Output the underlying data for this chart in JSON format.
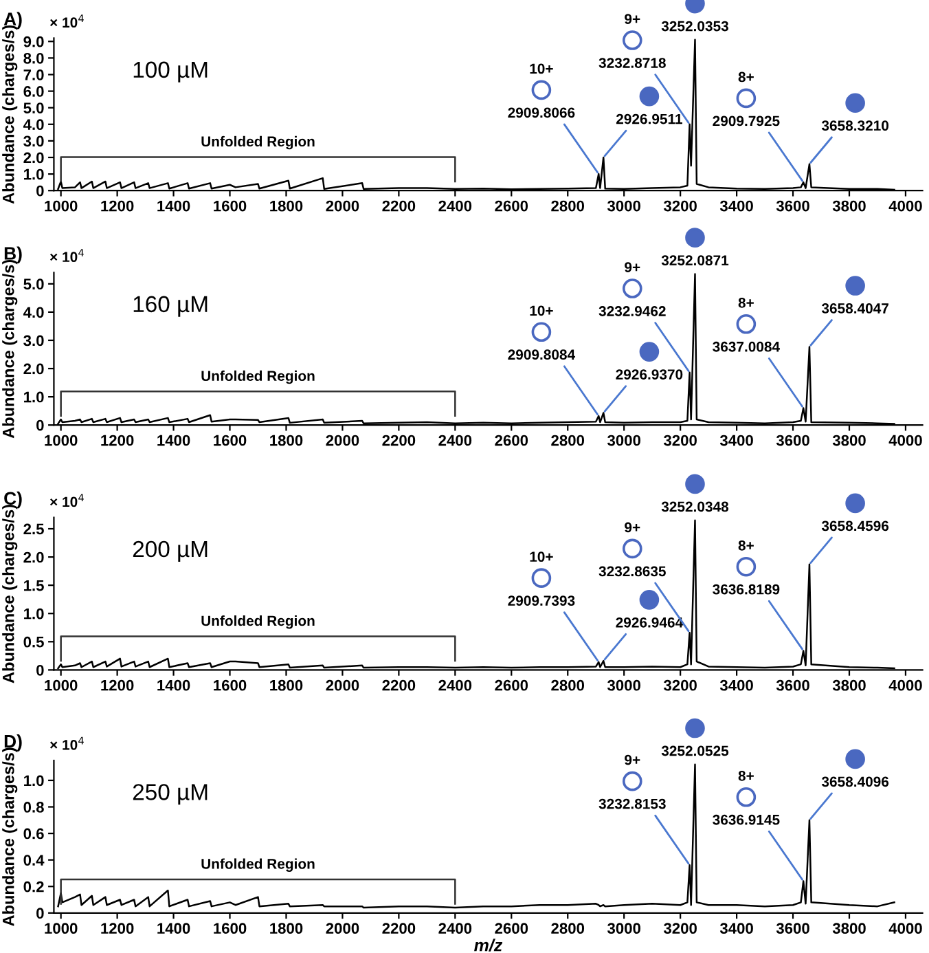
{
  "chart_data": [
    {
      "type": "line",
      "title": "A)",
      "ylabel": "Abundance (charges/s)",
      "x": [
        990,
        1000,
        1005,
        1050,
        1068,
        1073,
        1110,
        1115,
        1158,
        1163,
        1210,
        1215,
        1260,
        1265,
        1310,
        1315,
        1380,
        1385,
        1450,
        1455,
        1530,
        1535,
        1600,
        1620,
        1700,
        1705,
        1808,
        1813,
        1930,
        1935,
        2070,
        2075,
        2200,
        2300,
        2400,
        2500,
        2600,
        2700,
        2800,
        2900,
        2909.8,
        2915,
        2926.9,
        2933,
        3000,
        3100,
        3200,
        3225,
        3232.9,
        3238,
        3252.1,
        3258,
        3300,
        3400,
        3500,
        3600,
        3628,
        3637,
        3645,
        3658.4,
        3665,
        3800,
        3900,
        3960
      ],
      "series": [
        {
          "color": "#000000",
          "values": [
            0.1,
            0.55,
            0.15,
            0.2,
            0.5,
            0.15,
            0.55,
            0.15,
            0.55,
            0.15,
            0.5,
            0.15,
            0.5,
            0.15,
            0.45,
            0.15,
            0.45,
            0.12,
            0.45,
            0.12,
            0.45,
            0.12,
            0.35,
            0.2,
            0.4,
            0.12,
            0.6,
            0.12,
            0.75,
            0.1,
            0.45,
            0.1,
            0.15,
            0.15,
            0.1,
            0.12,
            0.08,
            0.1,
            0.12,
            0.15,
            1.0,
            0.15,
            2.0,
            0.12,
            0.1,
            0.15,
            0.2,
            0.3,
            4.0,
            1.5,
            9.1,
            0.4,
            0.2,
            0.12,
            0.1,
            0.15,
            0.2,
            0.5,
            0.15,
            1.6,
            0.2,
            0.1,
            0.1,
            0.05
          ]
        }
      ],
      "xlim": [
        975,
        4060
      ],
      "xticks": [
        1000,
        1200,
        1400,
        1600,
        1800,
        2000,
        2200,
        2400,
        2600,
        2800,
        3000,
        3200,
        3400,
        3600,
        3800,
        4000
      ],
      "ylim": [
        0,
        9.2
      ],
      "yticks": [
        0,
        {
          "value": 1.0,
          "label": "1.0"
        },
        {
          "value": 2.0,
          "label": "2.0"
        },
        {
          "value": 3.0,
          "label": "3.0"
        },
        {
          "value": 4.0,
          "label": "4.0"
        },
        {
          "value": 5.0,
          "label": "5.0"
        },
        {
          "value": 6.0,
          "label": "6.0"
        },
        {
          "value": 7.0,
          "label": "7.0"
        },
        {
          "value": 8.0,
          "label": "8.0"
        },
        {
          "value": 9.0,
          "label": "9.0"
        }
      ],
      "annotations": [
        "× 10$^{4}$",
        "100 µM",
        "Unfolded Region",
        "10+",
        {
          "text": "2909.8066",
          "x": 2909.8,
          "y": 1.0
        },
        {
          "text": "2926.9511",
          "x": 2926.9,
          "y": 2.0
        },
        "9+",
        {
          "text": "3232.8718",
          "x": 3232.9,
          "y": 4.0
        },
        {
          "text": "3252.0353",
          "x": 3252.1,
          "y": 9.1
        },
        "8+",
        {
          "text": "2909.7925",
          "x": 3637,
          "y": 0.5
        },
        {
          "text": "3658.3210",
          "x": 3658.4,
          "y": 1.6
        }
      ]
    },
    {
      "type": "line",
      "title": "B)",
      "ylabel": "Abundance (charges/s)",
      "x": [
        990,
        1000,
        1005,
        1050,
        1068,
        1073,
        1110,
        1115,
        1158,
        1163,
        1210,
        1215,
        1260,
        1265,
        1310,
        1315,
        1380,
        1385,
        1450,
        1455,
        1530,
        1535,
        1600,
        1620,
        1700,
        1705,
        1808,
        1813,
        1930,
        1935,
        2070,
        2075,
        2200,
        2300,
        2400,
        2500,
        2600,
        2700,
        2800,
        2900,
        2909.8,
        2915,
        2926.9,
        2933,
        3000,
        3100,
        3200,
        3225,
        3232.9,
        3238,
        3252.1,
        3258,
        3300,
        3400,
        3500,
        3600,
        3628,
        3637,
        3645,
        3658.4,
        3665,
        3800,
        3900,
        3960
      ],
      "series": [
        {
          "color": "#000000",
          "values": [
            0.05,
            0.2,
            0.1,
            0.15,
            0.2,
            0.1,
            0.22,
            0.1,
            0.22,
            0.1,
            0.25,
            0.1,
            0.2,
            0.1,
            0.2,
            0.1,
            0.25,
            0.1,
            0.22,
            0.1,
            0.35,
            0.12,
            0.2,
            0.2,
            0.18,
            0.1,
            0.25,
            0.08,
            0.2,
            0.08,
            0.15,
            0.06,
            0.08,
            0.1,
            0.06,
            0.08,
            0.06,
            0.08,
            0.1,
            0.12,
            0.32,
            0.1,
            0.43,
            0.1,
            0.08,
            0.1,
            0.1,
            0.15,
            1.86,
            0.2,
            5.35,
            0.2,
            0.1,
            0.08,
            0.06,
            0.1,
            0.15,
            0.6,
            0.12,
            2.77,
            0.1,
            0.08,
            0.06,
            0.04
          ]
        }
      ],
      "xlim": [
        975,
        4060
      ],
      "xticks": [
        1000,
        1200,
        1400,
        1600,
        1800,
        2000,
        2200,
        2400,
        2600,
        2800,
        3000,
        3200,
        3400,
        3600,
        3800,
        4000
      ],
      "ylim": [
        0,
        5.4
      ],
      "yticks": [
        0,
        {
          "value": 1.0,
          "label": "1.0"
        },
        {
          "value": 2.0,
          "label": "2.0"
        },
        {
          "value": 3.0,
          "label": "3.0"
        },
        {
          "value": 4.0,
          "label": "4.0"
        },
        {
          "value": 5.0,
          "label": "5.0"
        }
      ],
      "annotations": [
        "× 10$^{4}$",
        "160 µM",
        "Unfolded Region",
        "10+",
        {
          "text": "2909.8084",
          "x": 2909.8,
          "y": 0.32
        },
        {
          "text": "2926.9370",
          "x": 2926.9,
          "y": 0.43
        },
        "9+",
        {
          "text": "3232.9462",
          "x": 3232.9,
          "y": 1.86
        },
        {
          "text": "3252.0871",
          "x": 3252.1,
          "y": 5.35
        },
        "8+",
        {
          "text": "3637.0084",
          "x": 3637,
          "y": 0.6
        },
        {
          "text": "3658.4047",
          "x": 3658.4,
          "y": 2.77
        }
      ]
    },
    {
      "type": "line",
      "title": "C)",
      "ylabel": "Abundance (charges/s)",
      "x": [
        990,
        1000,
        1005,
        1050,
        1068,
        1073,
        1110,
        1115,
        1158,
        1163,
        1210,
        1215,
        1260,
        1265,
        1310,
        1315,
        1380,
        1385,
        1450,
        1455,
        1530,
        1535,
        1600,
        1620,
        1700,
        1705,
        1808,
        1813,
        1930,
        1935,
        2070,
        2075,
        2200,
        2300,
        2400,
        2500,
        2600,
        2700,
        2800,
        2900,
        2909.8,
        2915,
        2926.9,
        2933,
        3000,
        3100,
        3200,
        3225,
        3232.9,
        3238,
        3252.1,
        3258,
        3300,
        3400,
        3500,
        3600,
        3628,
        3637,
        3645,
        3658.4,
        3665,
        3800,
        3900,
        3960
      ],
      "series": [
        {
          "color": "#000000",
          "values": [
            0.03,
            0.1,
            0.05,
            0.08,
            0.12,
            0.05,
            0.15,
            0.05,
            0.15,
            0.06,
            0.2,
            0.06,
            0.15,
            0.06,
            0.15,
            0.05,
            0.2,
            0.05,
            0.12,
            0.05,
            0.12,
            0.05,
            0.15,
            0.15,
            0.12,
            0.05,
            0.1,
            0.04,
            0.08,
            0.04,
            0.08,
            0.04,
            0.05,
            0.05,
            0.04,
            0.05,
            0.04,
            0.05,
            0.05,
            0.06,
            0.14,
            0.05,
            0.16,
            0.05,
            0.05,
            0.06,
            0.05,
            0.1,
            0.66,
            0.1,
            2.65,
            0.15,
            0.06,
            0.05,
            0.04,
            0.06,
            0.1,
            0.34,
            0.08,
            1.87,
            0.1,
            0.05,
            0.04,
            0.03
          ]
        }
      ],
      "xlim": [
        975,
        4060
      ],
      "xticks": [
        1000,
        1200,
        1400,
        1600,
        1800,
        2000,
        2200,
        2400,
        2600,
        2800,
        3000,
        3200,
        3400,
        3600,
        3800,
        4000
      ],
      "ylim": [
        0,
        2.7
      ],
      "yticks": [
        0,
        0.5,
        {
          "value": 1.0,
          "label": "1.0"
        },
        1.5,
        {
          "value": 2.0,
          "label": "2.0"
        },
        2.5
      ],
      "annotations": [
        "× 10$^{4}$",
        "200 µM",
        "Unfolded Region",
        "10+",
        {
          "text": "2909.7393",
          "x": 2909.8,
          "y": 0.14
        },
        {
          "text": "2926.9464",
          "x": 2926.9,
          "y": 0.16
        },
        "9+",
        {
          "text": "3232.8635",
          "x": 3232.9,
          "y": 0.66
        },
        {
          "text": "3252.0348",
          "x": 3252.1,
          "y": 2.65
        },
        "8+",
        {
          "text": "3636.8189",
          "x": 3637,
          "y": 0.34
        },
        {
          "text": "3658.4596",
          "x": 3658.4,
          "y": 1.87
        }
      ]
    },
    {
      "type": "line",
      "title": "D)",
      "ylabel": "Abundance (charges/s)",
      "xlabel": "m/z",
      "x": [
        990,
        1000,
        1005,
        1050,
        1068,
        1073,
        1110,
        1115,
        1158,
        1163,
        1210,
        1215,
        1260,
        1265,
        1310,
        1315,
        1380,
        1385,
        1450,
        1455,
        1530,
        1535,
        1600,
        1620,
        1700,
        1705,
        1808,
        1813,
        1930,
        1935,
        2070,
        2075,
        2200,
        2300,
        2400,
        2500,
        2600,
        2700,
        2800,
        2900,
        2909.8,
        2915,
        2926.9,
        2933,
        3000,
        3100,
        3200,
        3225,
        3232.9,
        3238,
        3252.1,
        3258,
        3300,
        3400,
        3500,
        3600,
        3628,
        3637,
        3645,
        3658.4,
        3665,
        3800,
        3900,
        3960
      ],
      "series": [
        {
          "color": "#000000",
          "values": [
            0.05,
            0.15,
            0.08,
            0.12,
            0.14,
            0.06,
            0.13,
            0.06,
            0.12,
            0.06,
            0.1,
            0.06,
            0.1,
            0.05,
            0.12,
            0.05,
            0.17,
            0.05,
            0.1,
            0.05,
            0.09,
            0.05,
            0.08,
            0.06,
            0.12,
            0.05,
            0.07,
            0.05,
            0.06,
            0.05,
            0.05,
            0.04,
            0.05,
            0.05,
            0.04,
            0.05,
            0.05,
            0.06,
            0.06,
            0.07,
            0.06,
            0.05,
            0.06,
            0.05,
            0.06,
            0.07,
            0.06,
            0.08,
            0.36,
            0.06,
            1.12,
            0.08,
            0.06,
            0.06,
            0.05,
            0.06,
            0.08,
            0.24,
            0.07,
            0.7,
            0.08,
            0.06,
            0.05,
            0.08
          ]
        }
      ],
      "xlim": [
        975,
        4060
      ],
      "xticks": [
        1000,
        1200,
        1400,
        1600,
        1800,
        2000,
        2200,
        2400,
        2600,
        2800,
        3000,
        3200,
        3400,
        3600,
        3800,
        4000
      ],
      "ylim": [
        0,
        1.15
      ],
      "yticks": [
        0,
        0.2,
        0.4,
        0.6,
        0.8,
        {
          "value": 1.0,
          "label": "1.0"
        }
      ],
      "annotations": [
        "× 10$^{4}$",
        "250 µM",
        "Unfolded Region",
        "9+",
        {
          "text": "3232.8153",
          "x": 3232.9,
          "y": 0.36
        },
        {
          "text": "3252.0525",
          "x": 3252.1,
          "y": 1.12
        },
        "8+",
        {
          "text": "3636.9145",
          "x": 3637,
          "y": 0.24
        },
        {
          "text": "3658.4096",
          "x": 3658.4,
          "y": 0.7
        }
      ]
    }
  ]
}
